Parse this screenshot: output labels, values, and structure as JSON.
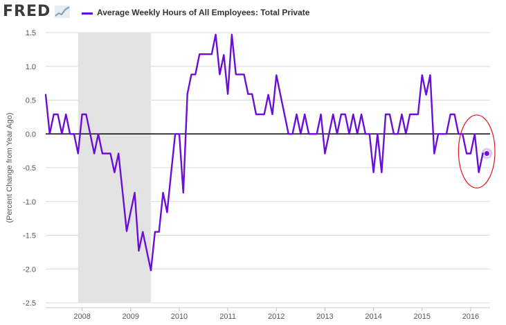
{
  "header": {
    "logo_text": "FRED",
    "logo_icon": "trend-line-icon",
    "legend_label": "Average Weekly Hours of All Employees: Total Private"
  },
  "chart_data": {
    "type": "line",
    "ylabel": "(Percent Change from Year Ago)",
    "xlabel": "",
    "ylim": [
      -2.5,
      1.5
    ],
    "xlim": [
      2007.25,
      2016.4
    ],
    "yticks": [
      1.5,
      1.0,
      0.5,
      0.0,
      -0.5,
      -1.0,
      -1.5,
      -2.0,
      -2.5
    ],
    "ytick_labels": [
      "1.5",
      "1.0",
      "0.5",
      "0.0",
      "-0.5",
      "-1.0",
      "-1.5",
      "-2.0",
      "-2.5"
    ],
    "xticks": [
      2008,
      2009,
      2010,
      2011,
      2012,
      2013,
      2014,
      2015,
      2016
    ],
    "xtick_labels": [
      "2008",
      "2009",
      "2010",
      "2011",
      "2012",
      "2013",
      "2014",
      "2015",
      "2016"
    ],
    "recession": [
      2007.917,
      2009.417
    ],
    "series": [
      {
        "name": "Average Weekly Hours of All Employees: Total Private",
        "color": "#6a0dd6",
        "x": [
          2007.25,
          2007.333,
          2007.417,
          2007.5,
          2007.583,
          2007.667,
          2007.75,
          2007.833,
          2007.917,
          2008.0,
          2008.083,
          2008.167,
          2008.25,
          2008.333,
          2008.417,
          2008.5,
          2008.583,
          2008.667,
          2008.75,
          2008.833,
          2008.917,
          2009.0,
          2009.083,
          2009.167,
          2009.25,
          2009.333,
          2009.417,
          2009.5,
          2009.583,
          2009.667,
          2009.75,
          2009.833,
          2009.917,
          2010.0,
          2010.083,
          2010.167,
          2010.25,
          2010.333,
          2010.417,
          2010.5,
          2010.583,
          2010.667,
          2010.75,
          2010.833,
          2010.917,
          2011.0,
          2011.083,
          2011.167,
          2011.25,
          2011.333,
          2011.417,
          2011.5,
          2011.583,
          2011.667,
          2011.75,
          2011.833,
          2011.917,
          2012.0,
          2012.083,
          2012.167,
          2012.25,
          2012.333,
          2012.417,
          2012.5,
          2012.583,
          2012.667,
          2012.75,
          2012.833,
          2012.917,
          2013.0,
          2013.083,
          2013.167,
          2013.25,
          2013.333,
          2013.417,
          2013.5,
          2013.583,
          2013.667,
          2013.75,
          2013.833,
          2013.917,
          2014.0,
          2014.083,
          2014.167,
          2014.25,
          2014.333,
          2014.417,
          2014.5,
          2014.583,
          2014.667,
          2014.75,
          2014.833,
          2014.917,
          2015.0,
          2015.083,
          2015.167,
          2015.25,
          2015.333,
          2015.417,
          2015.5,
          2015.583,
          2015.667,
          2015.75,
          2015.833,
          2015.917,
          2016.0,
          2016.083,
          2016.167,
          2016.25,
          2016.333
        ],
        "values": [
          0.58,
          0.0,
          0.29,
          0.29,
          0.0,
          0.29,
          0.0,
          0.0,
          -0.29,
          0.29,
          0.29,
          0.0,
          -0.29,
          0.0,
          -0.29,
          -0.29,
          -0.29,
          -0.57,
          -0.29,
          -0.86,
          -1.44,
          -1.15,
          -0.87,
          -1.73,
          -1.45,
          -1.74,
          -2.02,
          -1.45,
          -1.45,
          -0.87,
          -1.16,
          -0.58,
          0.0,
          0.0,
          -0.87,
          0.59,
          0.88,
          0.88,
          1.18,
          1.18,
          1.18,
          1.18,
          1.47,
          0.88,
          1.17,
          0.59,
          1.47,
          0.88,
          0.88,
          0.88,
          0.59,
          0.59,
          0.29,
          0.29,
          0.29,
          0.58,
          0.29,
          0.87,
          0.58,
          0.29,
          0.0,
          0.0,
          0.29,
          0.0,
          0.29,
          0.0,
          0.0,
          0.0,
          0.29,
          -0.29,
          0.0,
          0.29,
          0.0,
          0.29,
          0.29,
          0.0,
          0.29,
          0.0,
          0.29,
          0.0,
          0.0,
          -0.57,
          0.0,
          -0.57,
          0.29,
          0.29,
          0.0,
          0.0,
          0.29,
          0.0,
          0.29,
          0.29,
          0.29,
          0.87,
          0.58,
          0.87,
          -0.29,
          0.0,
          0.0,
          0.0,
          0.29,
          0.29,
          0.0,
          0.0,
          -0.29,
          -0.29,
          0.0,
          -0.57,
          -0.29,
          -0.29
        ]
      }
    ],
    "annotation": {
      "type": "ellipse-highlight",
      "color": "#e0121a",
      "x_range": [
        2015.75,
        2016.5
      ],
      "y_range": [
        -0.8,
        0.28
      ]
    },
    "last_point_marker": {
      "x": 2016.333,
      "value": -0.29
    }
  }
}
